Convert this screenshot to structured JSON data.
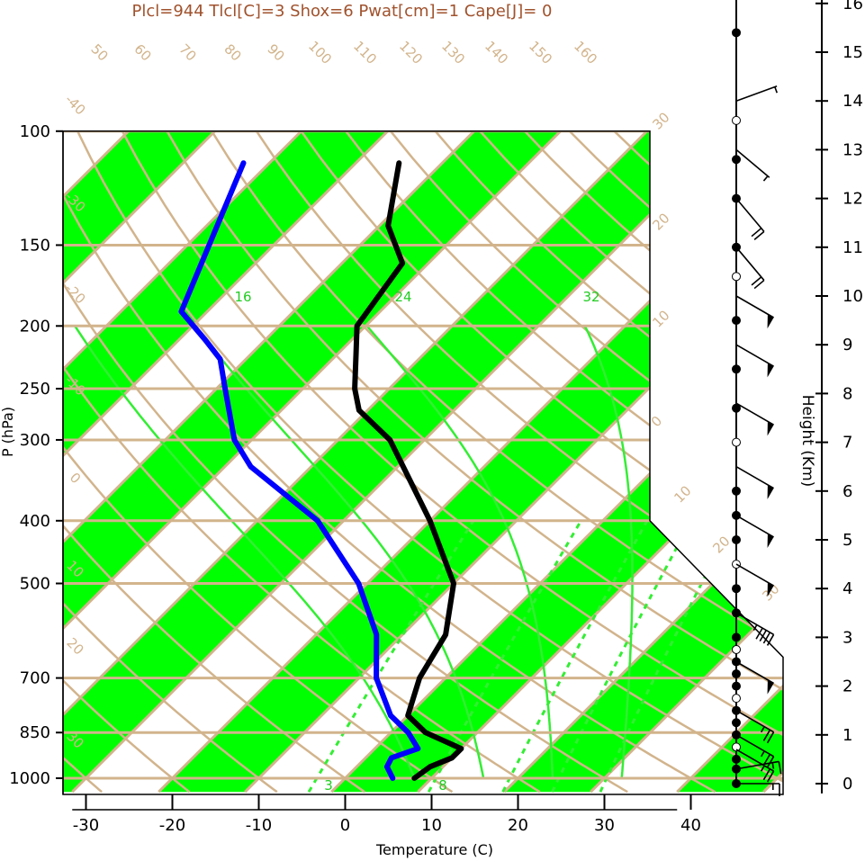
{
  "header": "Plcl=944 Tlcl[C]=3 Shox=6 Pwat[cm]=1 Cape[J]= 0",
  "colors": {
    "band": "#00ff00",
    "isoline": "#d2b48c",
    "mixing": "#33ee33",
    "temperature": "#000000",
    "dewpoint": "#0000ff",
    "header": "#a0522d"
  },
  "chart_data": {
    "type": "line",
    "title": "Plcl=944 Tlcl[C]=3 Shox=6 Pwat[cm]=1 Cape[J]= 0",
    "xlabel": "Temperature (C)",
    "ylabel": "P (hPa)",
    "y2label": "Height (Km)",
    "x_ticks": [
      "-30",
      "-20",
      "-10",
      "0",
      "10",
      "20",
      "30",
      "40"
    ],
    "y_ticks": [
      "100",
      "150",
      "200",
      "250",
      "300",
      "400",
      "500",
      "700",
      "850",
      "1000"
    ],
    "y2_ticks": [
      "0",
      "1",
      "2",
      "3",
      "4",
      "5",
      "6",
      "7",
      "8",
      "9",
      "10",
      "11",
      "12",
      "13",
      "14",
      "15",
      "16"
    ],
    "xlim": [
      -34,
      36
    ],
    "ylim": [
      1050,
      100
    ],
    "grid": true,
    "dry_adiabat_labels": [
      "50",
      "60",
      "70",
      "80",
      "90",
      "100",
      "110",
      "120",
      "130",
      "140",
      "150",
      "160"
    ],
    "isotherm_labels": [
      "-40",
      "-30",
      "-20",
      "-10",
      "0",
      "10",
      "20",
      "30"
    ],
    "right_labels": [
      "30",
      "20",
      "10",
      "0",
      "10",
      "20",
      "30"
    ],
    "moist_labels": [
      "16",
      "24",
      "32"
    ],
    "mixing_labels": [
      "3",
      "8"
    ],
    "series": [
      {
        "name": "temperature",
        "p": [
          1000,
          960,
          930,
          900,
          850,
          800,
          700,
          600,
          500,
          400,
          300,
          270,
          250,
          220,
          200,
          160,
          140,
          112
        ],
        "t": [
          8,
          8.5,
          10,
          10,
          4,
          0,
          -3,
          -5,
          -10,
          -20,
          -34,
          -41,
          -44,
          -48,
          -51,
          -53,
          -59,
          -65
        ]
      },
      {
        "name": "dewpoint",
        "p": [
          1000,
          960,
          930,
          900,
          850,
          800,
          700,
          600,
          500,
          400,
          330,
          300,
          250,
          225,
          210,
          190,
          112
        ],
        "t": [
          5.5,
          3.5,
          3,
          5,
          2,
          -2,
          -8,
          -13,
          -21,
          -33,
          -47,
          -52,
          -59,
          -63,
          -67,
          -73,
          -83
        ]
      }
    ],
    "wind_barbs": [
      {
        "height_km": 0.0,
        "speed_kt": 15,
        "dir_deg": 90
      },
      {
        "height_km": 0.3,
        "speed_kt": 15,
        "dir_deg": 80
      },
      {
        "height_km": 0.7,
        "speed_kt": 25,
        "dir_deg": 120
      },
      {
        "height_km": 1.0,
        "speed_kt": 25,
        "dir_deg": 120
      },
      {
        "height_km": 1.5,
        "speed_kt": 25,
        "dir_deg": 120
      },
      {
        "height_km": 2.5,
        "speed_kt": 50,
        "dir_deg": 120
      },
      {
        "height_km": 3.5,
        "speed_kt": 45,
        "dir_deg": 120
      },
      {
        "height_km": 4.5,
        "speed_kt": 50,
        "dir_deg": 120
      },
      {
        "height_km": 5.5,
        "speed_kt": 50,
        "dir_deg": 120
      },
      {
        "height_km": 6.5,
        "speed_kt": 50,
        "dir_deg": 120
      },
      {
        "height_km": 7.8,
        "speed_kt": 50,
        "dir_deg": 120
      },
      {
        "height_km": 9.0,
        "speed_kt": 50,
        "dir_deg": 120
      },
      {
        "height_km": 10.0,
        "speed_kt": 50,
        "dir_deg": 120
      },
      {
        "height_km": 11.0,
        "speed_kt": 20,
        "dir_deg": 140
      },
      {
        "height_km": 12.0,
        "speed_kt": 20,
        "dir_deg": 140
      },
      {
        "height_km": 13.0,
        "speed_kt": 5,
        "dir_deg": 130
      },
      {
        "height_km": 14.0,
        "speed_kt": 5,
        "dir_deg": 70
      }
    ],
    "height_markers_km": [
      0,
      0.3,
      0.5,
      0.75,
      1,
      1.25,
      1.5,
      1.75,
      2,
      2.25,
      2.5,
      2.75,
      3,
      3.5,
      4,
      4.5,
      5,
      5.5,
      6,
      7,
      7.7,
      8.5,
      9.5,
      10.4,
      11,
      12,
      12.8,
      13.6,
      15.4,
      16.2
    ]
  }
}
